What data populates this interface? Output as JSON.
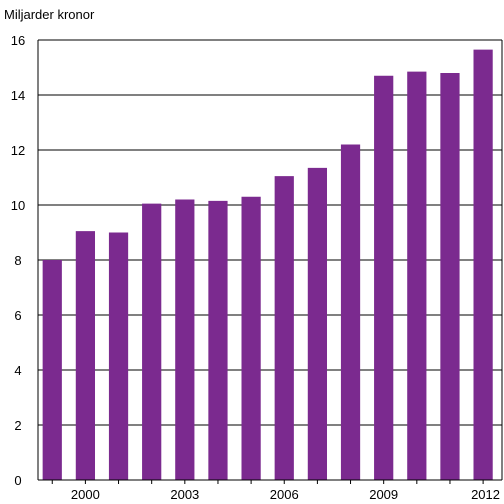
{
  "chart_data": {
    "type": "bar",
    "ylabel": "Miljarder kronor",
    "categories": [
      "1999",
      "2000",
      "2001",
      "2002",
      "2003",
      "2004",
      "2005",
      "2006",
      "2007",
      "2008",
      "2009",
      "2010",
      "2011",
      "2012"
    ],
    "tick_labels_x": [
      "2000",
      "2003",
      "2006",
      "2009",
      "2012"
    ],
    "values": [
      8.0,
      9.05,
      9.0,
      10.05,
      10.2,
      10.15,
      10.3,
      11.05,
      11.35,
      12.2,
      14.7,
      14.85,
      14.8,
      15.65
    ],
    "ylim": [
      0,
      16
    ],
    "yticks": [
      0,
      2,
      4,
      6,
      8,
      10,
      12,
      14,
      16
    ],
    "grid": "horizontal",
    "legend": "none",
    "bar_color": "#7b2a8f"
  }
}
